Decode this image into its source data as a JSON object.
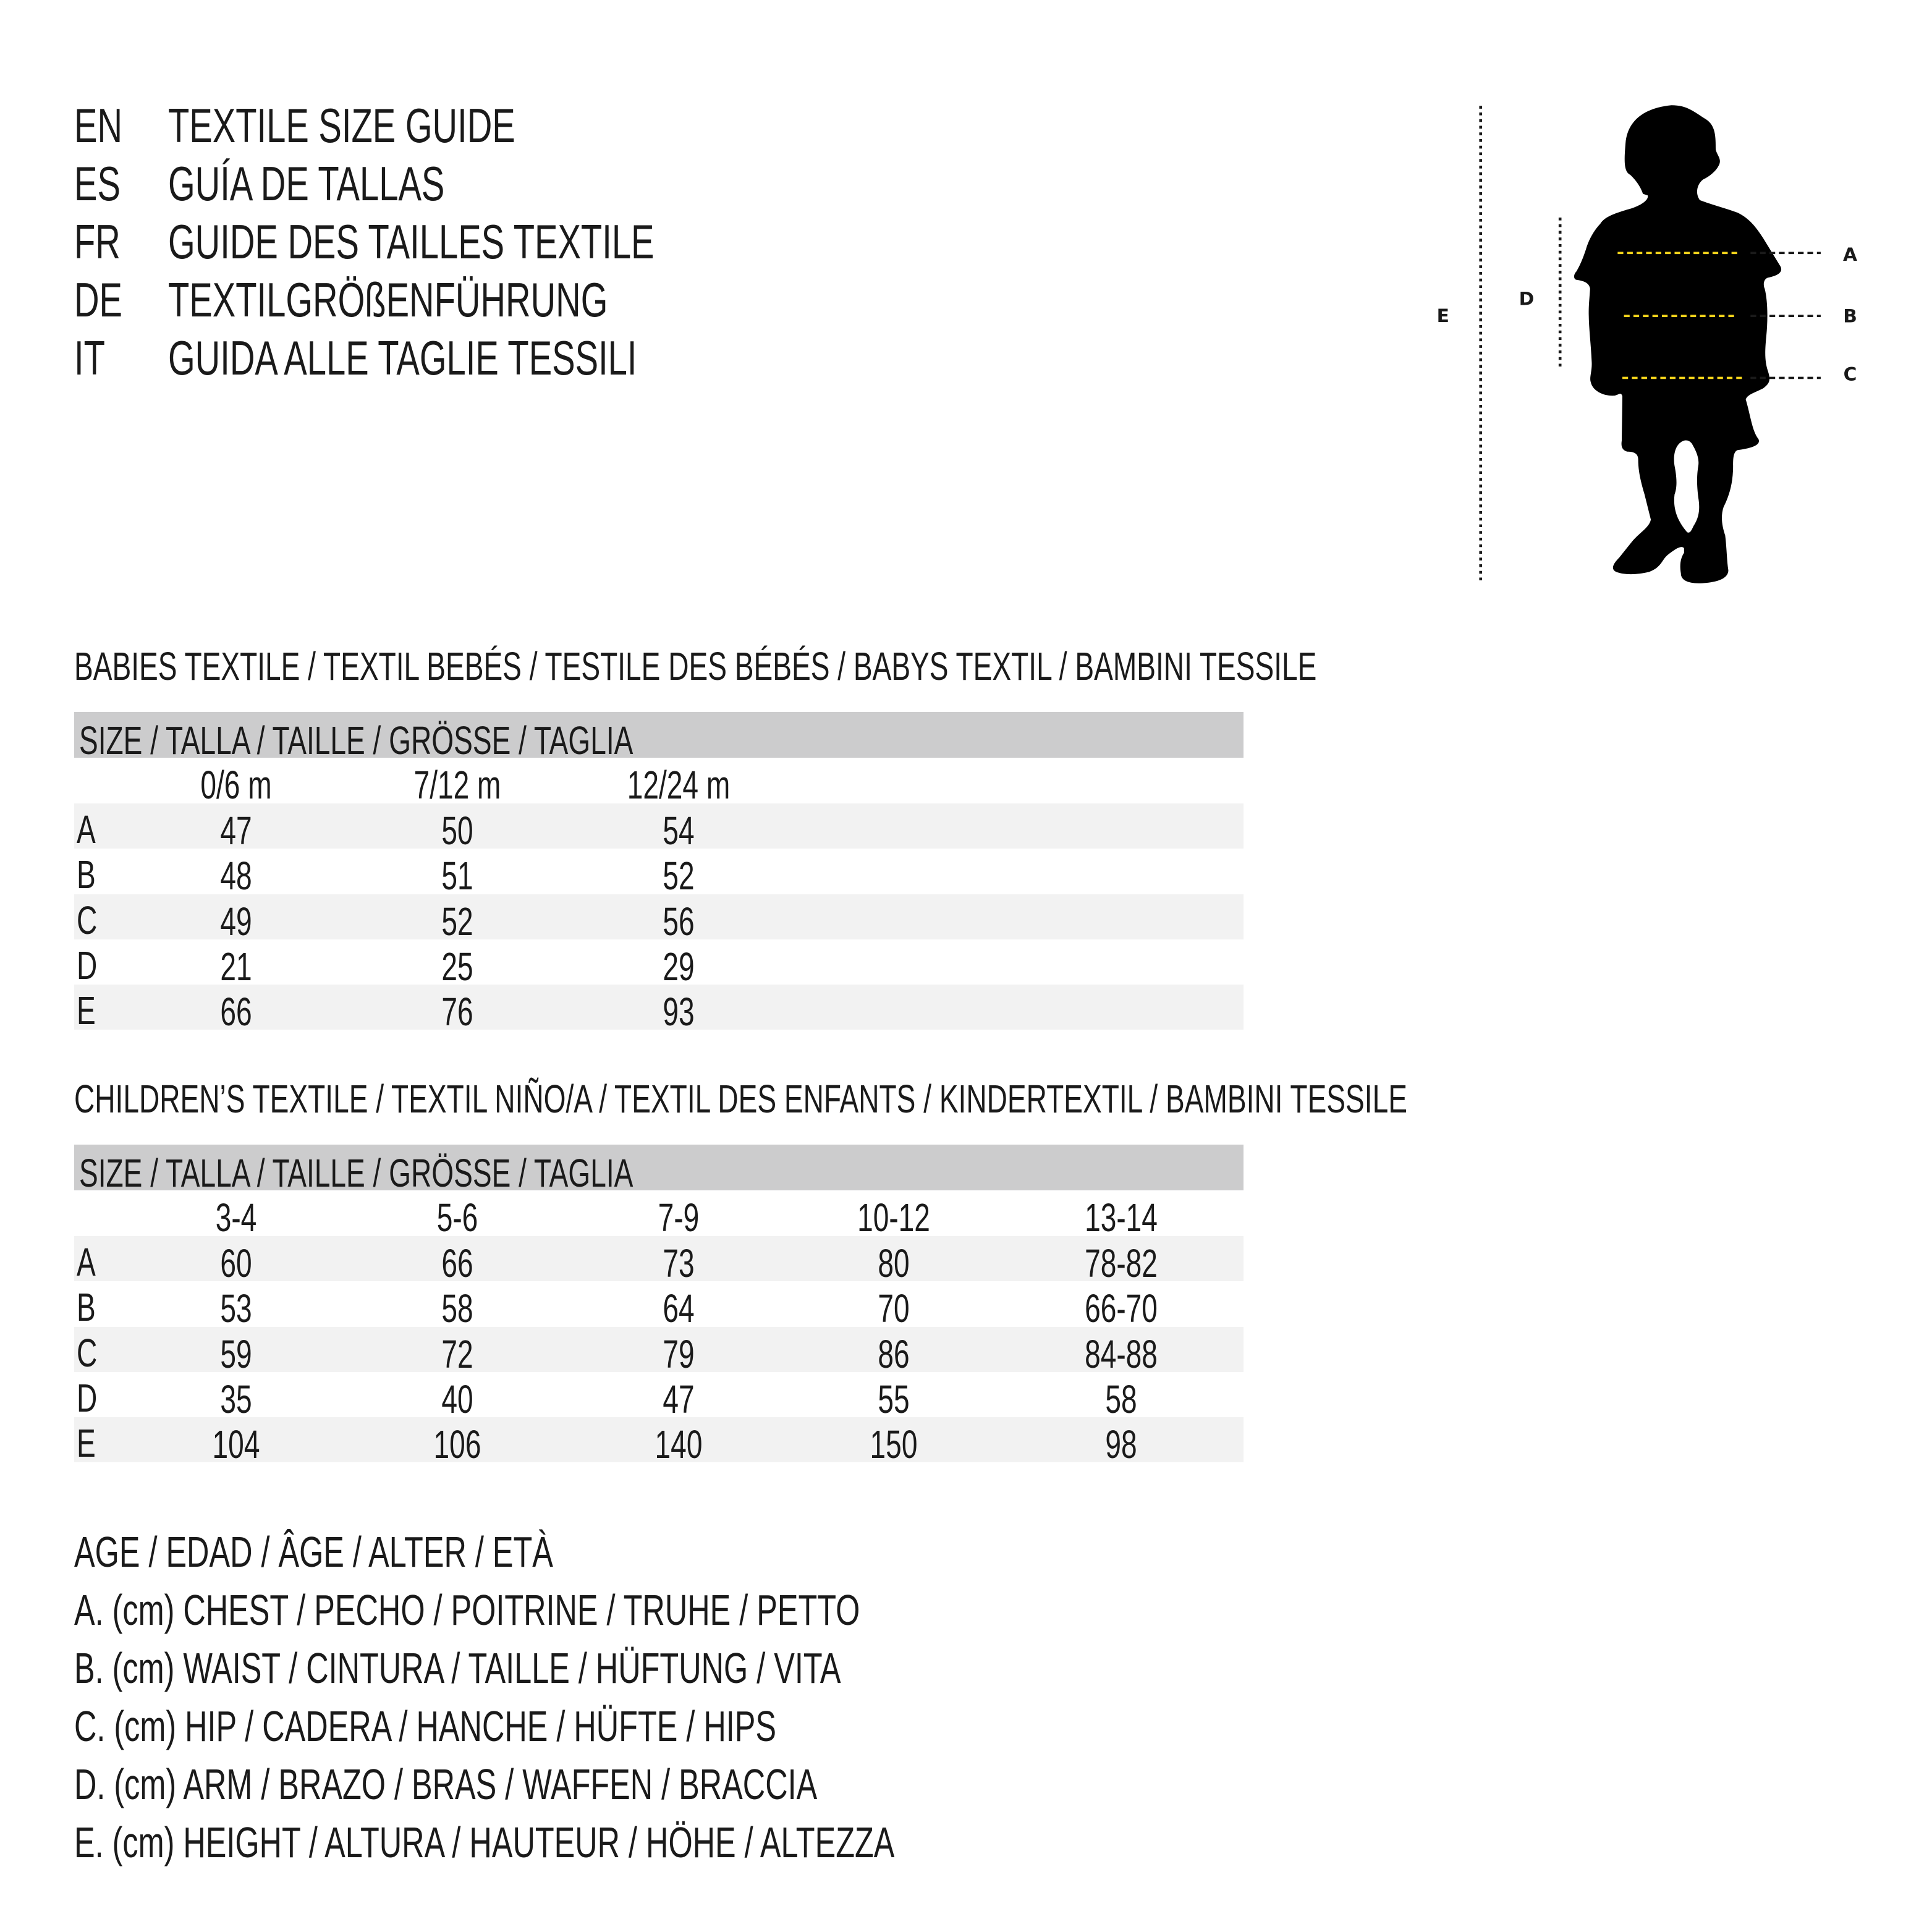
{
  "header": {
    "lines": [
      {
        "code": "EN",
        "text": "TEXTILE SIZE GUIDE"
      },
      {
        "code": "ES",
        "text": "GUÍA DE TALLAS"
      },
      {
        "code": "FR",
        "text": "GUIDE DES TAILLES TEXTILE"
      },
      {
        "code": "DE",
        "text": "TEXTILGRÖßENFÜHRUNG"
      },
      {
        "code": "IT",
        "text": "GUIDA ALLE TAGLIE TESSILI"
      }
    ]
  },
  "babies": {
    "title": "BABIES TEXTILE / TEXTIL BEBÉS / TESTILE DES BÉBÉS / BABYS TEXTIL / BAMBINI TESSILE",
    "size_header": "SIZE / TALLA / TAILLE / GRÖSSE / TAGLIA",
    "columns": [
      "0/6 m",
      "7/12 m",
      "12/24 m"
    ],
    "rows": [
      {
        "label": "A",
        "values": [
          "47",
          "50",
          "54"
        ]
      },
      {
        "label": "B",
        "values": [
          "48",
          "51",
          "52"
        ]
      },
      {
        "label": "C",
        "values": [
          "49",
          "52",
          "56"
        ]
      },
      {
        "label": "D",
        "values": [
          "21",
          "25",
          "29"
        ]
      },
      {
        "label": "E",
        "values": [
          "66",
          "76",
          "93"
        ]
      }
    ]
  },
  "children": {
    "title": "CHILDREN’S TEXTILE / TEXTIL NIÑO/A / TEXTIL DES ENFANTS / KINDERTEXTIL / BAMBINI TESSILE",
    "size_header": "SIZE / TALLA / TAILLE / GRÖSSE / TAGLIA",
    "columns": [
      "3-4",
      "5-6",
      "7-9",
      "10-12",
      "13-14"
    ],
    "rows": [
      {
        "label": "A",
        "values": [
          "60",
          "66",
          "73",
          "80",
          "78-82"
        ]
      },
      {
        "label": "B",
        "values": [
          "53",
          "58",
          "64",
          "70",
          "66-70"
        ]
      },
      {
        "label": "C",
        "values": [
          "59",
          "72",
          "79",
          "86",
          "84-88"
        ]
      },
      {
        "label": "D",
        "values": [
          "35",
          "40",
          "47",
          "55",
          "58"
        ]
      },
      {
        "label": "E",
        "values": [
          "104",
          "106",
          "140",
          "150",
          "98"
        ]
      }
    ]
  },
  "legend": {
    "age": "AGE / EDAD / ÂGE / ALTER / ETÀ",
    "items": [
      "A. (cm) CHEST / PECHO / POITRINE / TRUHE / PETTO",
      "B. (cm) WAIST / CINTURA / TAILLE / HÜFTUNG / VITA",
      "C. (cm) HIP / CADERA / HANCHE / HÜFTE / HIPS",
      "D. (cm) ARM / BRAZO / BRAS / WAFFEN / BRACCIA",
      "E. (cm) HEIGHT / ALTURA / HAUTEUR / HÖHE / ALTEZZA"
    ]
  },
  "figure": {
    "labels": {
      "a": "A",
      "b": "B",
      "c": "C",
      "d": "D",
      "e": "E"
    },
    "colors": {
      "silhouette": "#000000",
      "measure_line": "#f2d21b",
      "guide_line": "#1a1a1a",
      "header_band": "#cccccd",
      "row_stripe": "#f2f2f2"
    }
  }
}
